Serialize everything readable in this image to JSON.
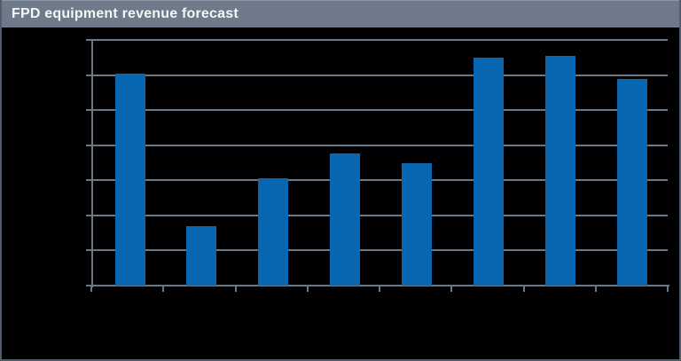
{
  "header": {
    "title": "FPD equipment revenue forecast"
  },
  "colors": {
    "background": "#000000",
    "titlebar_bg": "#6E7A89",
    "title_text": "#F4F6F8",
    "bar": "#0967B1",
    "grid": "#6B7886",
    "border": "#4F5D6C"
  },
  "chart_data": {
    "type": "bar",
    "title": "FPD equipment revenue forecast",
    "categories": [
      "",
      "",
      "",
      "",
      "",
      "",
      "",
      ""
    ],
    "values": [
      6.05,
      1.7,
      3.05,
      3.77,
      3.48,
      6.5,
      6.55,
      5.9
    ],
    "xlabel": "",
    "ylabel": "",
    "ylim": [
      0,
      7
    ],
    "gridline_interval": 1,
    "grid": true,
    "legend": false,
    "axis_tick_labels_visible": false,
    "series_color": "#0967B1",
    "note": "single blue series on black plot background; tick labels not visible in image"
  }
}
